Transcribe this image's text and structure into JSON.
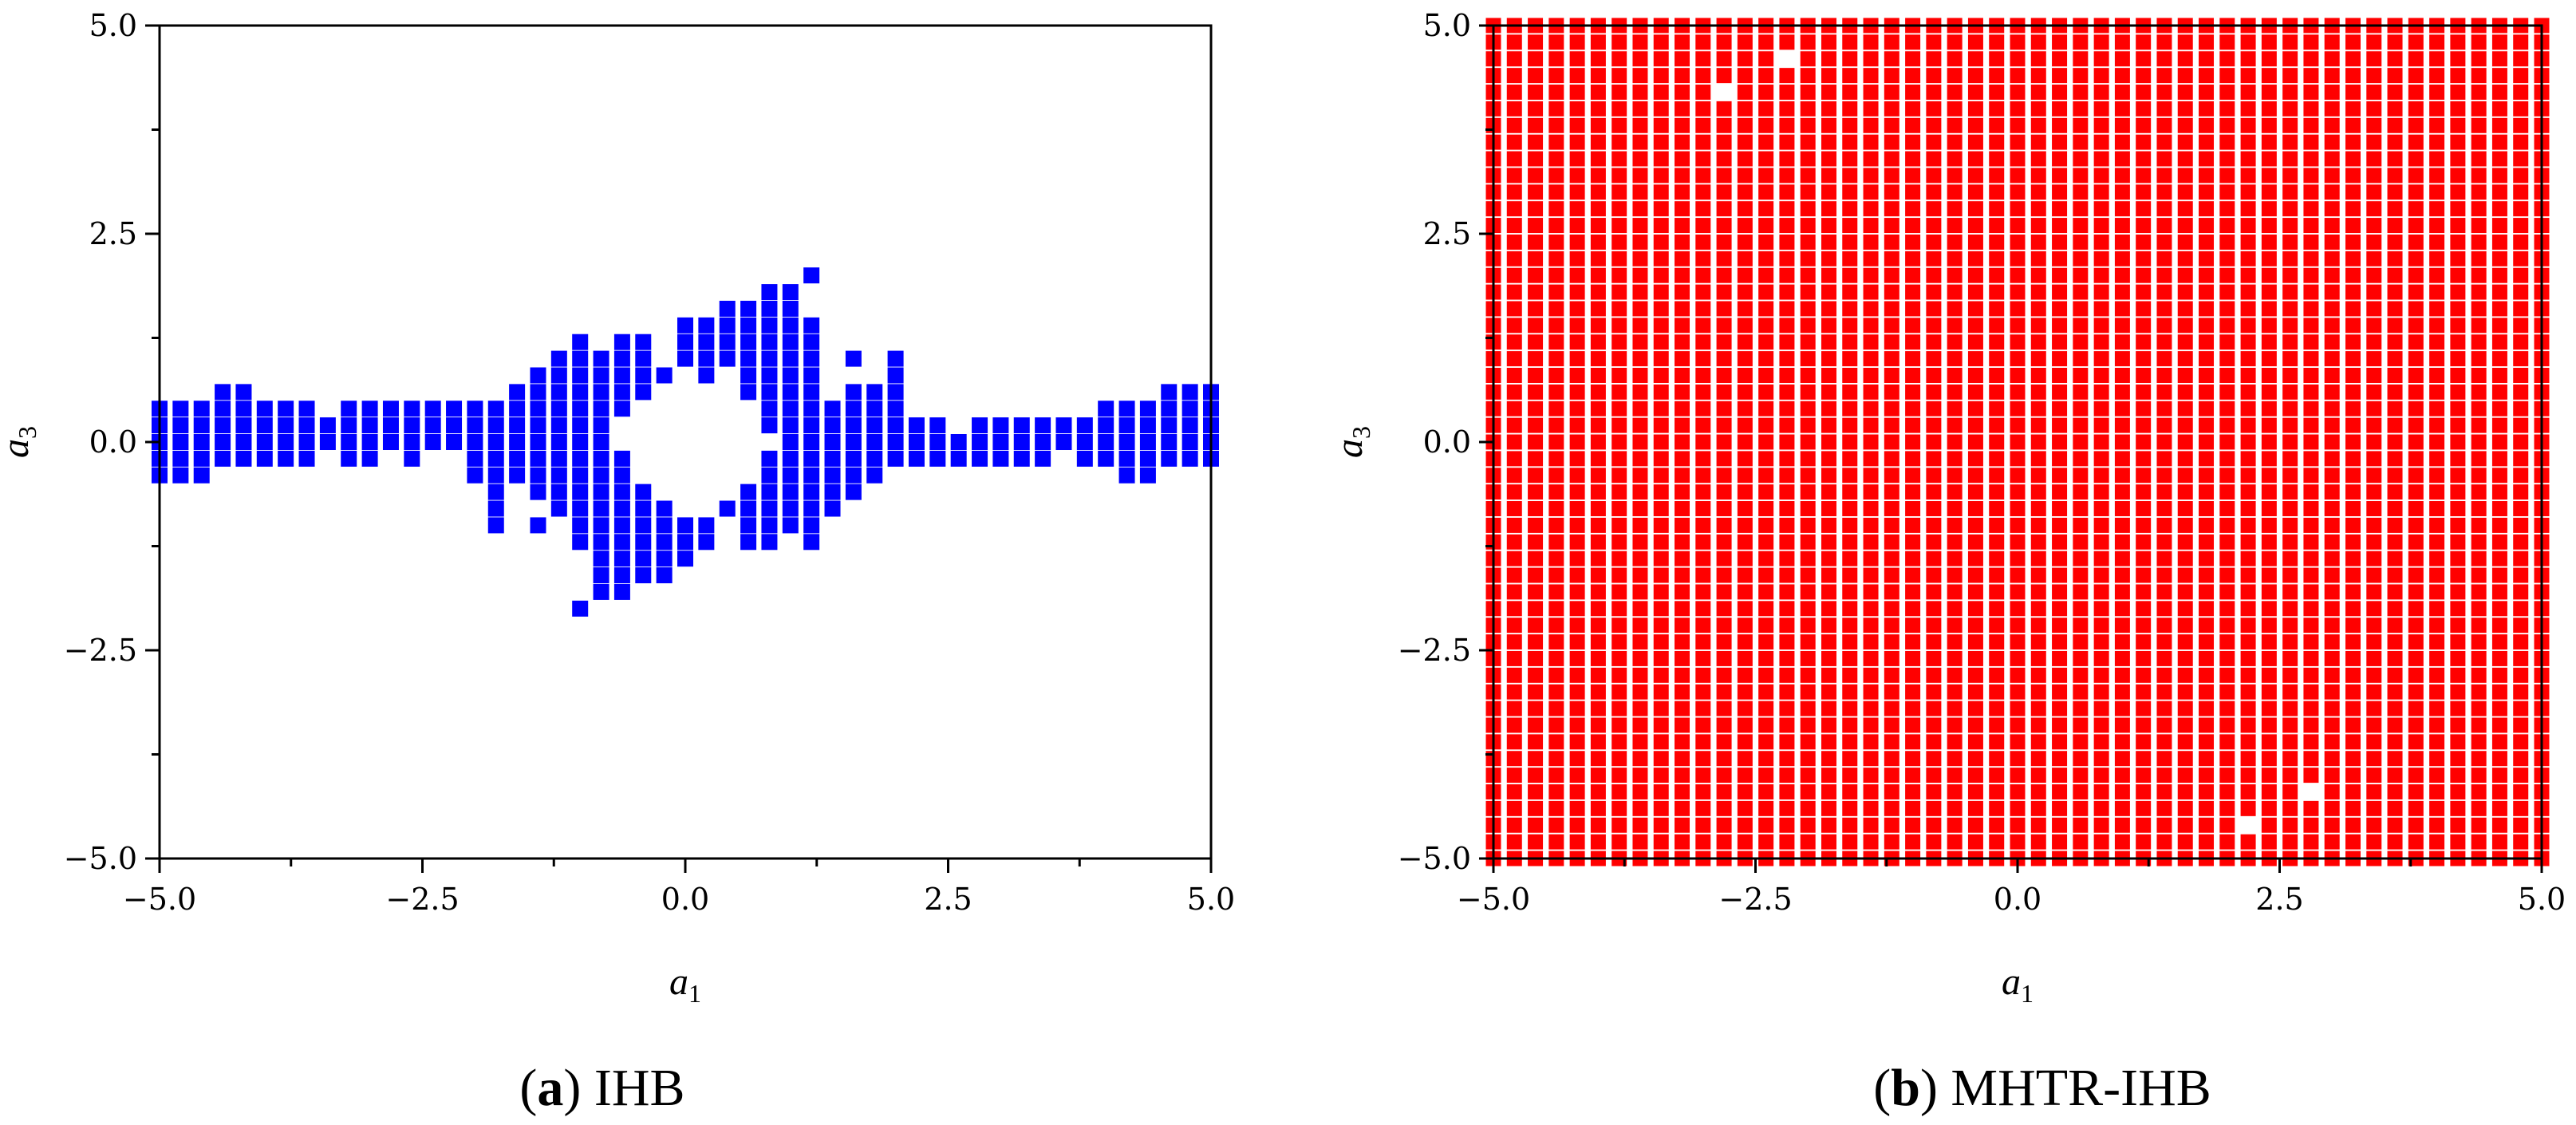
{
  "chart_data": [
    {
      "type": "scatter",
      "caption": {
        "open": "(",
        "letter": "a",
        "close": ")",
        "text": "IHB"
      },
      "xlabel": {
        "symbol": "a",
        "subscript": "1"
      },
      "ylabel": {
        "symbol": "a",
        "subscript": "3"
      },
      "xlim": [
        -5.0,
        5.0
      ],
      "ylim": [
        -5.0,
        5.0
      ],
      "xticks": [
        -5.0,
        -2.5,
        0.0,
        2.5,
        5.0
      ],
      "yticks": [
        -5.0,
        -2.5,
        0.0,
        2.5,
        5.0
      ],
      "xtick_labels": [
        "−5.0",
        "−2.5",
        "0.0",
        "2.5",
        "5.0"
      ],
      "ytick_labels": [
        "−5.0",
        "−2.5",
        "0.0",
        "2.5",
        "5.0"
      ],
      "grid": false,
      "marker": "square",
      "color": "#0000ff",
      "grid_step": 0.2,
      "points_by_column": [
        {
          "x": -5.0,
          "y": [
            -0.4,
            -0.2,
            0.0,
            0.2,
            0.4
          ]
        },
        {
          "x": -4.8,
          "y": [
            -0.4,
            -0.2,
            0.0,
            0.2,
            0.4
          ]
        },
        {
          "x": -4.6,
          "y": [
            -0.4,
            -0.2,
            0.0,
            0.2,
            0.4
          ]
        },
        {
          "x": -4.4,
          "y": [
            -0.2,
            0.0,
            0.2,
            0.4,
            0.6
          ]
        },
        {
          "x": -4.2,
          "y": [
            -0.2,
            0.0,
            0.2,
            0.4,
            0.6
          ]
        },
        {
          "x": -4.0,
          "y": [
            -0.2,
            0.0,
            0.2,
            0.4
          ]
        },
        {
          "x": -3.8,
          "y": [
            -0.2,
            0.0,
            0.2,
            0.4
          ]
        },
        {
          "x": -3.6,
          "y": [
            -0.2,
            0.0,
            0.2,
            0.4
          ]
        },
        {
          "x": -3.4,
          "y": [
            0.0,
            0.2
          ]
        },
        {
          "x": -3.2,
          "y": [
            -0.2,
            0.0,
            0.2,
            0.4
          ]
        },
        {
          "x": -3.0,
          "y": [
            -0.2,
            0.0,
            0.2,
            0.4
          ]
        },
        {
          "x": -2.8,
          "y": [
            0.0,
            0.2,
            0.4
          ]
        },
        {
          "x": -2.6,
          "y": [
            -0.2,
            0.0,
            0.2,
            0.4
          ]
        },
        {
          "x": -2.4,
          "y": [
            0.0,
            0.2,
            0.4
          ]
        },
        {
          "x": -2.2,
          "y": [
            0.0,
            0.2,
            0.4
          ]
        },
        {
          "x": -2.0,
          "y": [
            -0.4,
            -0.2,
            0.0,
            0.2,
            0.4
          ]
        },
        {
          "x": -1.8,
          "y": [
            -1.0,
            -0.8,
            -0.6,
            -0.4,
            -0.2,
            0.0,
            0.2,
            0.4
          ]
        },
        {
          "x": -1.6,
          "y": [
            -0.4,
            -0.2,
            0.0,
            0.2,
            0.4,
            0.6
          ]
        },
        {
          "x": -1.4,
          "y": [
            -1.0,
            -0.6,
            -0.4,
            -0.2,
            0.0,
            0.2,
            0.4,
            0.6,
            0.8
          ]
        },
        {
          "x": -1.2,
          "y": [
            -0.8,
            -0.6,
            -0.4,
            -0.2,
            0.0,
            0.2,
            0.4,
            0.6,
            0.8,
            1.0
          ]
        },
        {
          "x": -1.0,
          "y": [
            -2.0,
            -1.2,
            -1.0,
            -0.8,
            -0.6,
            -0.4,
            -0.2,
            0.0,
            0.2,
            0.4,
            0.6,
            0.8,
            1.0,
            1.2
          ]
        },
        {
          "x": -0.8,
          "y": [
            -1.8,
            -1.6,
            -1.4,
            -1.2,
            -1.0,
            -0.8,
            -0.6,
            -0.4,
            -0.2,
            0.0,
            0.2,
            0.4,
            0.6,
            0.8,
            1.0
          ]
        },
        {
          "x": -0.6,
          "y": [
            -1.8,
            -1.6,
            -1.4,
            -1.2,
            -1.0,
            -0.8,
            -0.6,
            -0.4,
            -0.2,
            0.4,
            0.6,
            0.8,
            1.0,
            1.2
          ]
        },
        {
          "x": -0.4,
          "y": [
            -1.6,
            -1.4,
            -1.2,
            -1.0,
            -0.8,
            -0.6,
            0.6,
            0.8,
            1.0,
            1.2
          ]
        },
        {
          "x": -0.2,
          "y": [
            -1.6,
            -1.4,
            -1.2,
            -1.0,
            -0.8,
            0.8
          ]
        },
        {
          "x": 0.0,
          "y": [
            -1.4,
            -1.2,
            -1.0,
            1.0,
            1.2,
            1.4
          ]
        },
        {
          "x": 0.2,
          "y": [
            -1.2,
            -1.0,
            0.8,
            1.0,
            1.2,
            1.4
          ]
        },
        {
          "x": 0.4,
          "y": [
            -0.8,
            1.0,
            1.2,
            1.4,
            1.6
          ]
        },
        {
          "x": 0.6,
          "y": [
            -1.2,
            -1.0,
            -0.8,
            -0.6,
            0.6,
            0.8,
            1.0,
            1.2,
            1.4,
            1.6
          ]
        },
        {
          "x": 0.8,
          "y": [
            -1.2,
            -1.0,
            -0.8,
            -0.6,
            -0.4,
            -0.2,
            0.2,
            0.4,
            0.6,
            0.8,
            1.0,
            1.2,
            1.4,
            1.6,
            1.8
          ]
        },
        {
          "x": 1.0,
          "y": [
            -1.0,
            -0.8,
            -0.6,
            -0.4,
            -0.2,
            0.0,
            0.2,
            0.4,
            0.6,
            0.8,
            1.0,
            1.2,
            1.4,
            1.6,
            1.8
          ]
        },
        {
          "x": 1.2,
          "y": [
            -1.2,
            -1.0,
            -0.8,
            -0.6,
            -0.4,
            -0.2,
            0.0,
            0.2,
            0.4,
            0.6,
            0.8,
            1.0,
            1.2,
            1.4,
            2.0
          ]
        },
        {
          "x": 1.4,
          "y": [
            -0.8,
            -0.6,
            -0.4,
            -0.2,
            0.0,
            0.2,
            0.4
          ]
        },
        {
          "x": 1.6,
          "y": [
            -0.6,
            -0.4,
            -0.2,
            0.0,
            0.2,
            0.4,
            0.6,
            1.0
          ]
        },
        {
          "x": 1.8,
          "y": [
            -0.4,
            -0.2,
            0.0,
            0.2,
            0.4,
            0.6
          ]
        },
        {
          "x": 2.0,
          "y": [
            -0.2,
            0.0,
            0.2,
            0.4,
            0.6,
            0.8,
            1.0
          ]
        },
        {
          "x": 2.2,
          "y": [
            -0.2,
            0.0,
            0.2
          ]
        },
        {
          "x": 2.4,
          "y": [
            -0.2,
            0.0,
            0.2
          ]
        },
        {
          "x": 2.6,
          "y": [
            -0.2,
            0.0
          ]
        },
        {
          "x": 2.8,
          "y": [
            -0.2,
            0.0,
            0.2
          ]
        },
        {
          "x": 3.0,
          "y": [
            -0.2,
            0.0,
            0.2
          ]
        },
        {
          "x": 3.2,
          "y": [
            -0.2,
            0.0,
            0.2
          ]
        },
        {
          "x": 3.4,
          "y": [
            -0.2,
            0.0,
            0.2
          ]
        },
        {
          "x": 3.6,
          "y": [
            0.0,
            0.2
          ]
        },
        {
          "x": 3.8,
          "y": [
            -0.2,
            0.0,
            0.2
          ]
        },
        {
          "x": 4.0,
          "y": [
            -0.2,
            0.0,
            0.2,
            0.4
          ]
        },
        {
          "x": 4.2,
          "y": [
            -0.4,
            -0.2,
            0.0,
            0.2,
            0.4
          ]
        },
        {
          "x": 4.4,
          "y": [
            -0.4,
            -0.2,
            0.0,
            0.2,
            0.4
          ]
        },
        {
          "x": 4.6,
          "y": [
            -0.2,
            0.0,
            0.2,
            0.4,
            0.6
          ]
        },
        {
          "x": 4.8,
          "y": [
            -0.2,
            0.0,
            0.2,
            0.4,
            0.6
          ]
        },
        {
          "x": 5.0,
          "y": [
            -0.2,
            0.0,
            0.2,
            0.4,
            0.6
          ]
        }
      ]
    },
    {
      "type": "scatter",
      "caption": {
        "open": "(",
        "letter": "b",
        "close": ")",
        "text": "MHTR-IHB"
      },
      "xlabel": {
        "symbol": "a",
        "subscript": "1"
      },
      "ylabel": {
        "symbol": "a",
        "subscript": "3"
      },
      "xlim": [
        -5.0,
        5.0
      ],
      "ylim": [
        -5.0,
        5.0
      ],
      "xticks": [
        -5.0,
        -2.5,
        0.0,
        2.5,
        5.0
      ],
      "yticks": [
        -5.0,
        -2.5,
        0.0,
        2.5,
        5.0
      ],
      "xtick_labels": [
        "−5.0",
        "−2.5",
        "0.0",
        "2.5",
        "5.0"
      ],
      "ytick_labels": [
        "−5.0",
        "−2.5",
        "0.0",
        "2.5",
        "5.0"
      ],
      "grid": false,
      "marker": "square",
      "color": "#ff0000",
      "fill_rule": "full grid from -5.0 to 5.0 in both axes, step 0.2",
      "grid_step": 0.2,
      "grid_range": [
        -5.0,
        5.0
      ],
      "missing_points": [
        {
          "x": -2.8,
          "y": 4.2
        },
        {
          "x": -2.2,
          "y": 4.6
        },
        {
          "x": 2.2,
          "y": -4.6
        },
        {
          "x": 2.8,
          "y": -4.2
        }
      ]
    }
  ]
}
